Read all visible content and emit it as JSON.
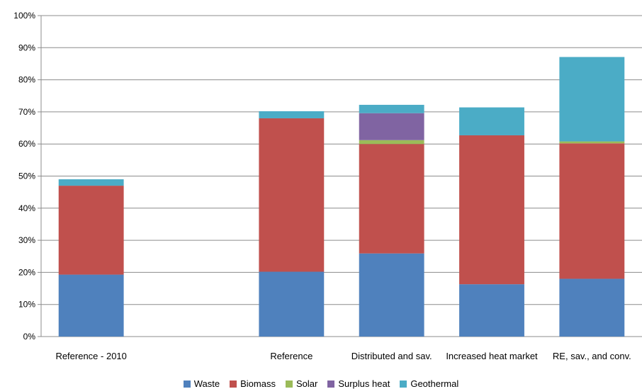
{
  "chart_data": {
    "type": "bar",
    "stacked": true,
    "categories": [
      "Reference - 2010",
      "",
      "Reference",
      "Distributed and sav.",
      "Increased heat market",
      "RE, sav., and conv."
    ],
    "series": [
      {
        "name": "Waste",
        "color": "#4F81BD",
        "values": [
          19.3,
          0,
          20.2,
          25.9,
          16.3,
          18.0
        ]
      },
      {
        "name": "Biomass",
        "color": "#C0504D",
        "values": [
          27.7,
          0,
          47.8,
          34.1,
          46.4,
          42.2
        ]
      },
      {
        "name": "Solar",
        "color": "#9BBB59",
        "values": [
          0,
          0,
          0,
          1.2,
          0,
          0.6
        ]
      },
      {
        "name": "Surplus heat",
        "color": "#8064A2",
        "values": [
          0,
          0,
          0,
          8.4,
          0,
          0
        ]
      },
      {
        "name": "Geothermal",
        "color": "#4BACC6",
        "values": [
          2.0,
          0,
          2.2,
          2.6,
          8.7,
          26.3
        ]
      }
    ],
    "y_ticks": [
      "0%",
      "10%",
      "20%",
      "30%",
      "40%",
      "50%",
      "60%",
      "70%",
      "80%",
      "90%",
      "100%"
    ],
    "ylim": [
      0,
      100
    ],
    "grid": true,
    "legend_position": "bottom"
  }
}
